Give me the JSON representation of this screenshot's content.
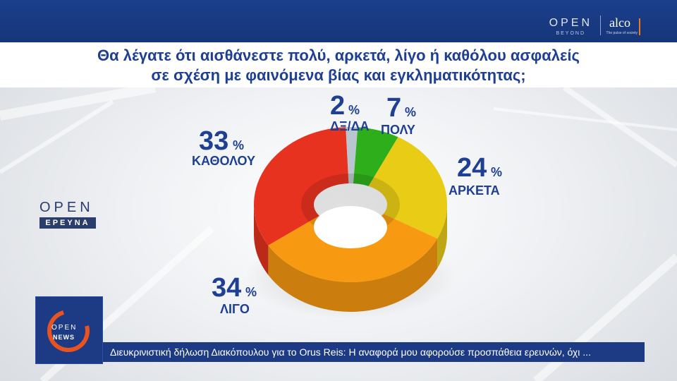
{
  "header": {
    "brand_open": "OPEN",
    "brand_open_sub": "BEYOND",
    "brand_alco": "alco",
    "brand_alco_sub": "The pulse of society"
  },
  "question": {
    "line1": "Θα λέγατε ότι αισθάνεστε πολύ, αρκετά, λίγο ή καθόλου ασφαλείς",
    "line2": "σε σχέση με φαινόμενα βίας και εγκληματικότητας;"
  },
  "side_logo": {
    "top": "OPEN",
    "bottom": "ΕΡΕΥΝΑ"
  },
  "news_logo": {
    "line1": "OPEN",
    "line2": "NEWS"
  },
  "ticker": {
    "text": "Διευκρινιστική δήλωση Διακόπουλου για το Orus Reis: Η αναφορά μου αφορούσε προσπάθεια ερευνών, όχι ..."
  },
  "chart_data": {
    "type": "pie",
    "subtype": "donut",
    "unit": "%",
    "slices": [
      {
        "label": "ΔΞ/ΔΑ",
        "value": 2,
        "color": "#b9c6cf"
      },
      {
        "label": "ΠΟΛΥ",
        "value": 7,
        "color": "#2fae1c"
      },
      {
        "label": "ΑΡΚΕΤΑ",
        "value": 24,
        "color": "#e8cc16"
      },
      {
        "label": "ΛΙΓΟ",
        "value": 34,
        "color": "#f79a11"
      },
      {
        "label": "ΚΑΘΟΛΟΥ",
        "value": 33,
        "color": "#e7321f"
      }
    ],
    "label_texts": {
      "percent_sign": "%"
    }
  },
  "colors": {
    "brand_blue": "#1e3f92",
    "ticker_bg": "#1d3a84",
    "accent_orange": "#f07a1e"
  }
}
